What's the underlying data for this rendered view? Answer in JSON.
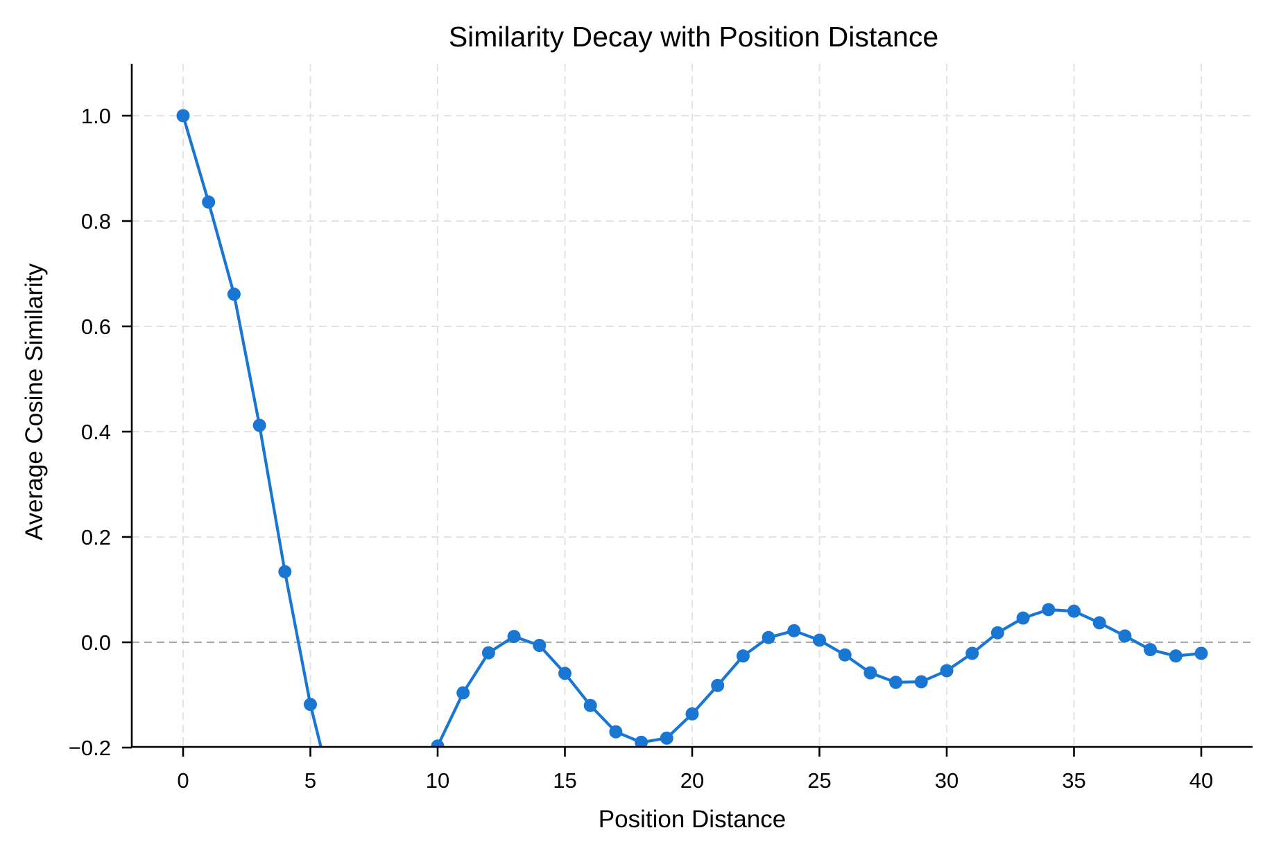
{
  "chart_data": {
    "type": "line",
    "title": "Similarity Decay with Position Distance",
    "xlabel": "Position Distance",
    "ylabel": "Average Cosine Similarity",
    "xlim": [
      -2,
      42
    ],
    "ylim": [
      -0.2,
      1.1
    ],
    "x_ticks": [
      0,
      5,
      10,
      15,
      20,
      25,
      30,
      35,
      40
    ],
    "x_tick_labels": [
      "0",
      "5",
      "10",
      "15",
      "20",
      "25",
      "30",
      "35",
      "40"
    ],
    "y_ticks": [
      -0.2,
      0.0,
      0.2,
      0.4,
      0.6,
      0.8,
      1.0
    ],
    "y_tick_labels": [
      "−0.2",
      "0.0",
      "0.2",
      "0.4",
      "0.6",
      "0.8",
      "1.0"
    ],
    "grid": true,
    "grid_style": "dashed",
    "reference_line": {
      "y": 0.0,
      "style": "dashed",
      "color": "#aaaaaa"
    },
    "legend": null,
    "series": [
      {
        "name": "Average Cosine Similarity",
        "color": "#1976D2",
        "marker": "circle",
        "x": [
          0,
          1,
          2,
          3,
          4,
          5,
          6,
          7,
          8,
          9,
          10,
          11,
          12,
          13,
          14,
          15,
          16,
          17,
          18,
          19,
          20,
          21,
          22,
          23,
          24,
          25,
          26,
          27,
          28,
          29,
          30,
          31,
          32,
          33,
          34,
          35,
          36,
          37,
          38,
          39,
          40
        ],
        "values": [
          1.0,
          0.836,
          0.661,
          0.412,
          0.134,
          -0.118,
          null,
          null,
          null,
          null,
          -0.197,
          -0.096,
          -0.02,
          0.011,
          -0.006,
          -0.059,
          -0.12,
          -0.17,
          -0.19,
          -0.182,
          -0.136,
          -0.082,
          -0.026,
          0.009,
          0.022,
          0.004,
          -0.024,
          -0.058,
          -0.076,
          -0.075,
          -0.054,
          -0.021,
          0.018,
          0.046,
          0.062,
          0.059,
          0.037,
          0.012,
          -0.014,
          -0.026,
          -0.021
        ],
        "note_values_below_axis": "Points at x=6..9 fall below the visible y-range (< -0.2); line exits the axis at x≈5.42"
      }
    ],
    "offscreen_exit_x": 5.42
  }
}
